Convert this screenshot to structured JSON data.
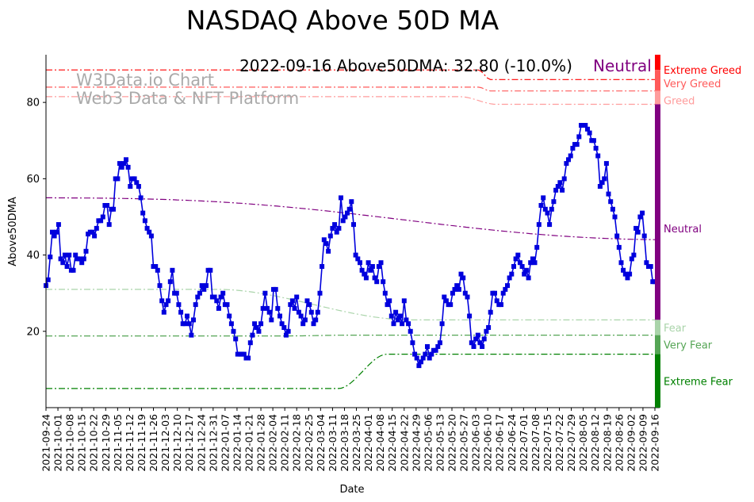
{
  "chart_data": {
    "type": "line",
    "title": "NASDAQ Above 50D MA",
    "xlabel": "Date",
    "ylabel": "Above50DMA",
    "annotation": "2022-09-16 Above50DMA: 32.80 (-10.0%)",
    "annotation_state": "Neutral",
    "watermark": [
      "W3Data.io Chart",
      "Web3 Data & NFT Platform"
    ],
    "ylim": [
      0,
      92.5
    ],
    "yticks": [
      20,
      40,
      60,
      80
    ],
    "x_start": "2021-09-24",
    "x_end": "2022-09-16",
    "xtick_labels": [
      "2021-09-24",
      "2021-10-01",
      "2021-10-08",
      "2021-10-15",
      "2021-10-22",
      "2021-10-29",
      "2021-11-05",
      "2021-11-12",
      "2021-11-19",
      "2021-11-26",
      "2021-12-03",
      "2021-12-10",
      "2021-12-17",
      "2021-12-24",
      "2021-12-31",
      "2022-01-07",
      "2022-01-14",
      "2022-01-21",
      "2022-01-28",
      "2022-02-04",
      "2022-02-11",
      "2022-02-18",
      "2022-02-25",
      "2022-03-04",
      "2022-03-11",
      "2022-03-18",
      "2022-03-25",
      "2022-04-01",
      "2022-04-08",
      "2022-04-15",
      "2022-04-22",
      "2022-04-29",
      "2022-05-06",
      "2022-05-13",
      "2022-05-20",
      "2022-05-27",
      "2022-06-03",
      "2022-06-10",
      "2022-06-17",
      "2022-06-24",
      "2022-07-01",
      "2022-07-08",
      "2022-07-15",
      "2022-07-22",
      "2022-07-29",
      "2022-08-05",
      "2022-08-12",
      "2022-08-19",
      "2022-08-26",
      "2022-09-02",
      "2022-09-09",
      "2022-09-16"
    ],
    "series": [
      {
        "name": "Above50DMA",
        "color": "#0000dd",
        "values": [
          32,
          33.5,
          39.5,
          46,
          45,
          46,
          48,
          39,
          38,
          40,
          37,
          40,
          36,
          36,
          40,
          39,
          39,
          38,
          39,
          41,
          45.5,
          46,
          46,
          45,
          47,
          49,
          49,
          50,
          53,
          53,
          48,
          52,
          52,
          60,
          60,
          64,
          63,
          64,
          65,
          63,
          58,
          60,
          60,
          59,
          58,
          55,
          51,
          49,
          47,
          46,
          45,
          37,
          37,
          36,
          32,
          28,
          25,
          27,
          28,
          33,
          36,
          30,
          30,
          27,
          25,
          22,
          22,
          24,
          22,
          19,
          23,
          27,
          29,
          30,
          32,
          31,
          32,
          36,
          36,
          29,
          29,
          28,
          26,
          29,
          30,
          27,
          27,
          24,
          22,
          20,
          18,
          14,
          14,
          14,
          14,
          13,
          13,
          17,
          19,
          22,
          21,
          20,
          22,
          26,
          30,
          26,
          25,
          23,
          31,
          31,
          26,
          24,
          22,
          21,
          19,
          20,
          27,
          28,
          26,
          29,
          25,
          24,
          22,
          23,
          28,
          27,
          25,
          22,
          23,
          25,
          30,
          37,
          44,
          43,
          41,
          45,
          47,
          48,
          46,
          47,
          55,
          49,
          50,
          51,
          52,
          54,
          48,
          40,
          39,
          38,
          36,
          35,
          34,
          38,
          36,
          37,
          34,
          33,
          37,
          38,
          33,
          30,
          27,
          28,
          24,
          22,
          25,
          23,
          24,
          22,
          28,
          23,
          22,
          20,
          17,
          14,
          13,
          11,
          12,
          13,
          14,
          16,
          13,
          14,
          15,
          15,
          16,
          17,
          22,
          29,
          28,
          27,
          27,
          30,
          31,
          32,
          31,
          35,
          34,
          30,
          29,
          24,
          17,
          16,
          18,
          19,
          17,
          16,
          18,
          20,
          21,
          25,
          30,
          30,
          28,
          27,
          27,
          30,
          31,
          32,
          34,
          35,
          37,
          39,
          40,
          38,
          37,
          35,
          36,
          34,
          38,
          39,
          38,
          42,
          48,
          53,
          55,
          52,
          51,
          48,
          52,
          54,
          57,
          58,
          59,
          57,
          60,
          64,
          65,
          66,
          68,
          69,
          69,
          71,
          74,
          74,
          74,
          73,
          72,
          70,
          70,
          68,
          66,
          58,
          59,
          60,
          64,
          56,
          54,
          52,
          50,
          45,
          42,
          38,
          36,
          35,
          34,
          35,
          39,
          40,
          47,
          46,
          50,
          51,
          45,
          38,
          37,
          37,
          33,
          33
        ]
      }
    ],
    "sentiment_bands": [
      {
        "name": "Extreme Greed",
        "color": "#ff0000",
        "range": [
          88.5,
          92.5
        ],
        "line": {
          "start": 88.5,
          "end": 86,
          "transition": [
            0.71,
            0.73
          ]
        }
      },
      {
        "name": "Very Greed",
        "color": "#ff5a5a",
        "range": [
          83,
          88.5
        ],
        "line": {
          "start": 84,
          "end": 83,
          "transition": [
            0.71,
            0.73
          ]
        }
      },
      {
        "name": "Greed",
        "color": "#ff9c9c",
        "range": [
          79.5,
          83
        ],
        "line": {
          "start": 81.5,
          "end": 79.5,
          "transition": [
            0.68,
            0.74
          ]
        }
      },
      {
        "name": "Neutral",
        "color": "#800080",
        "range": [
          23,
          79.5
        ],
        "line": {
          "start": 55,
          "end": 47,
          "shape": "wave"
        }
      },
      {
        "name": "Fear",
        "color": "#aad4aa",
        "range": [
          19,
          23
        ],
        "line": {
          "start": 31,
          "end": 23,
          "transition": [
            0.28,
            0.6
          ]
        }
      },
      {
        "name": "Very Fear",
        "color": "#55a555",
        "range": [
          14,
          19
        ],
        "line": {
          "start": 18.8,
          "end": 19,
          "transition": [
            0.4,
            0.5
          ]
        }
      },
      {
        "name": "Extreme Fear",
        "color": "#008000",
        "range": [
          0,
          14
        ],
        "line": {
          "start": 5,
          "end": 14,
          "transition": [
            0.48,
            0.56
          ]
        }
      }
    ]
  }
}
